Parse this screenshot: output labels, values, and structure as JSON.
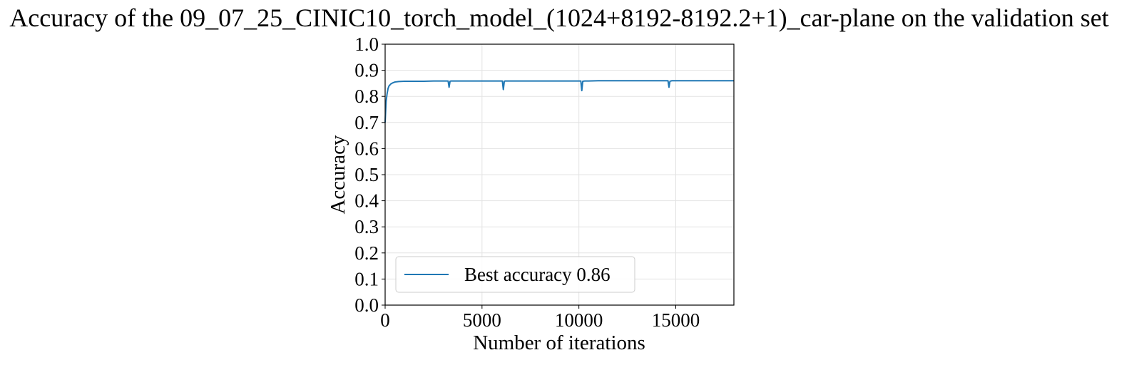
{
  "chart_data": {
    "type": "line",
    "title": "Accuracy of the 09_07_25_CINIC10_torch_model_(1024+8192-8192.2+1)_car-plane on the validation set",
    "xlabel": "Number of iterations",
    "ylabel": "Accuracy",
    "xlim": [
      0,
      18000
    ],
    "ylim": [
      0.0,
      1.0
    ],
    "xticks": [
      0,
      5000,
      10000,
      15000
    ],
    "yticks": [
      0.0,
      0.1,
      0.2,
      0.3,
      0.4,
      0.5,
      0.6,
      0.7,
      0.8,
      0.9,
      1.0
    ],
    "ytick_labels": [
      "0.0",
      "0.1",
      "0.2",
      "0.3",
      "0.4",
      "0.5",
      "0.6",
      "0.7",
      "0.8",
      "0.9",
      "1.0"
    ],
    "xtick_labels": [
      "0",
      "5000",
      "10000",
      "15000"
    ],
    "grid": true,
    "legend_position": "lower-left",
    "series": [
      {
        "name": "Best accuracy 0.86",
        "color": "#1f77b4",
        "x": [
          0,
          50,
          100,
          150,
          200,
          300,
          400,
          500,
          700,
          1000,
          1500,
          2000,
          2500,
          3000,
          3250,
          3300,
          3350,
          3400,
          3500,
          4000,
          4500,
          5000,
          5500,
          6000,
          6050,
          6100,
          6150,
          6200,
          6500,
          7000,
          7500,
          8000,
          8500,
          9000,
          9500,
          10000,
          10100,
          10150,
          10200,
          10300,
          10500,
          11000,
          11500,
          12000,
          12500,
          13000,
          13500,
          14000,
          14500,
          14600,
          14650,
          14700,
          14800,
          15000,
          15500,
          16000,
          16500,
          17000,
          17500,
          18000
        ],
        "y": [
          0.7,
          0.78,
          0.81,
          0.83,
          0.84,
          0.848,
          0.852,
          0.855,
          0.857,
          0.858,
          0.858,
          0.858,
          0.859,
          0.859,
          0.859,
          0.835,
          0.858,
          0.859,
          0.859,
          0.859,
          0.859,
          0.859,
          0.859,
          0.859,
          0.859,
          0.826,
          0.858,
          0.859,
          0.859,
          0.859,
          0.859,
          0.859,
          0.859,
          0.859,
          0.859,
          0.859,
          0.859,
          0.822,
          0.858,
          0.859,
          0.859,
          0.86,
          0.86,
          0.86,
          0.86,
          0.86,
          0.86,
          0.86,
          0.86,
          0.86,
          0.835,
          0.858,
          0.86,
          0.86,
          0.86,
          0.86,
          0.86,
          0.86,
          0.86,
          0.86
        ]
      }
    ]
  }
}
